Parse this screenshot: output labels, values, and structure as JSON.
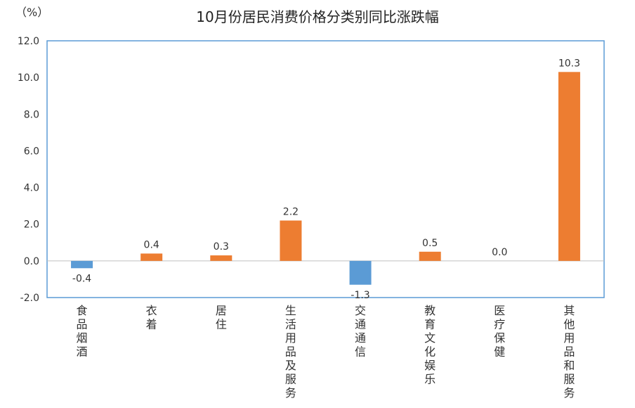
{
  "chart_data": {
    "type": "bar",
    "title": "10月份居民消费价格分类别同比涨跌幅",
    "unit": "（%）",
    "categories": [
      "食品烟酒",
      "衣着",
      "居住",
      "生活用品及服务",
      "交通通信",
      "教育文化娱乐",
      "医疗保健",
      "其他用品和服务"
    ],
    "values": [
      -0.4,
      0.4,
      0.3,
      2.2,
      -1.3,
      0.5,
      0.0,
      10.3
    ],
    "value_labels": [
      "-0.4",
      "0.4",
      "0.3",
      "2.2",
      "-1.3",
      "0.5",
      "0.0",
      "10.3"
    ],
    "ylim": [
      -2.0,
      12.0
    ],
    "yticks": [
      -2.0,
      0.0,
      2.0,
      4.0,
      6.0,
      8.0,
      10.0,
      12.0
    ],
    "ytick_labels": [
      "-2.0",
      "0.0",
      "2.0",
      "4.0",
      "6.0",
      "8.0",
      "10.0",
      "12.0"
    ],
    "grid": false,
    "colors": {
      "positive": "#ED7D31",
      "negative": "#5B9BD5",
      "frame": "#5B9BD5",
      "axis": "#BFBFBF"
    }
  }
}
